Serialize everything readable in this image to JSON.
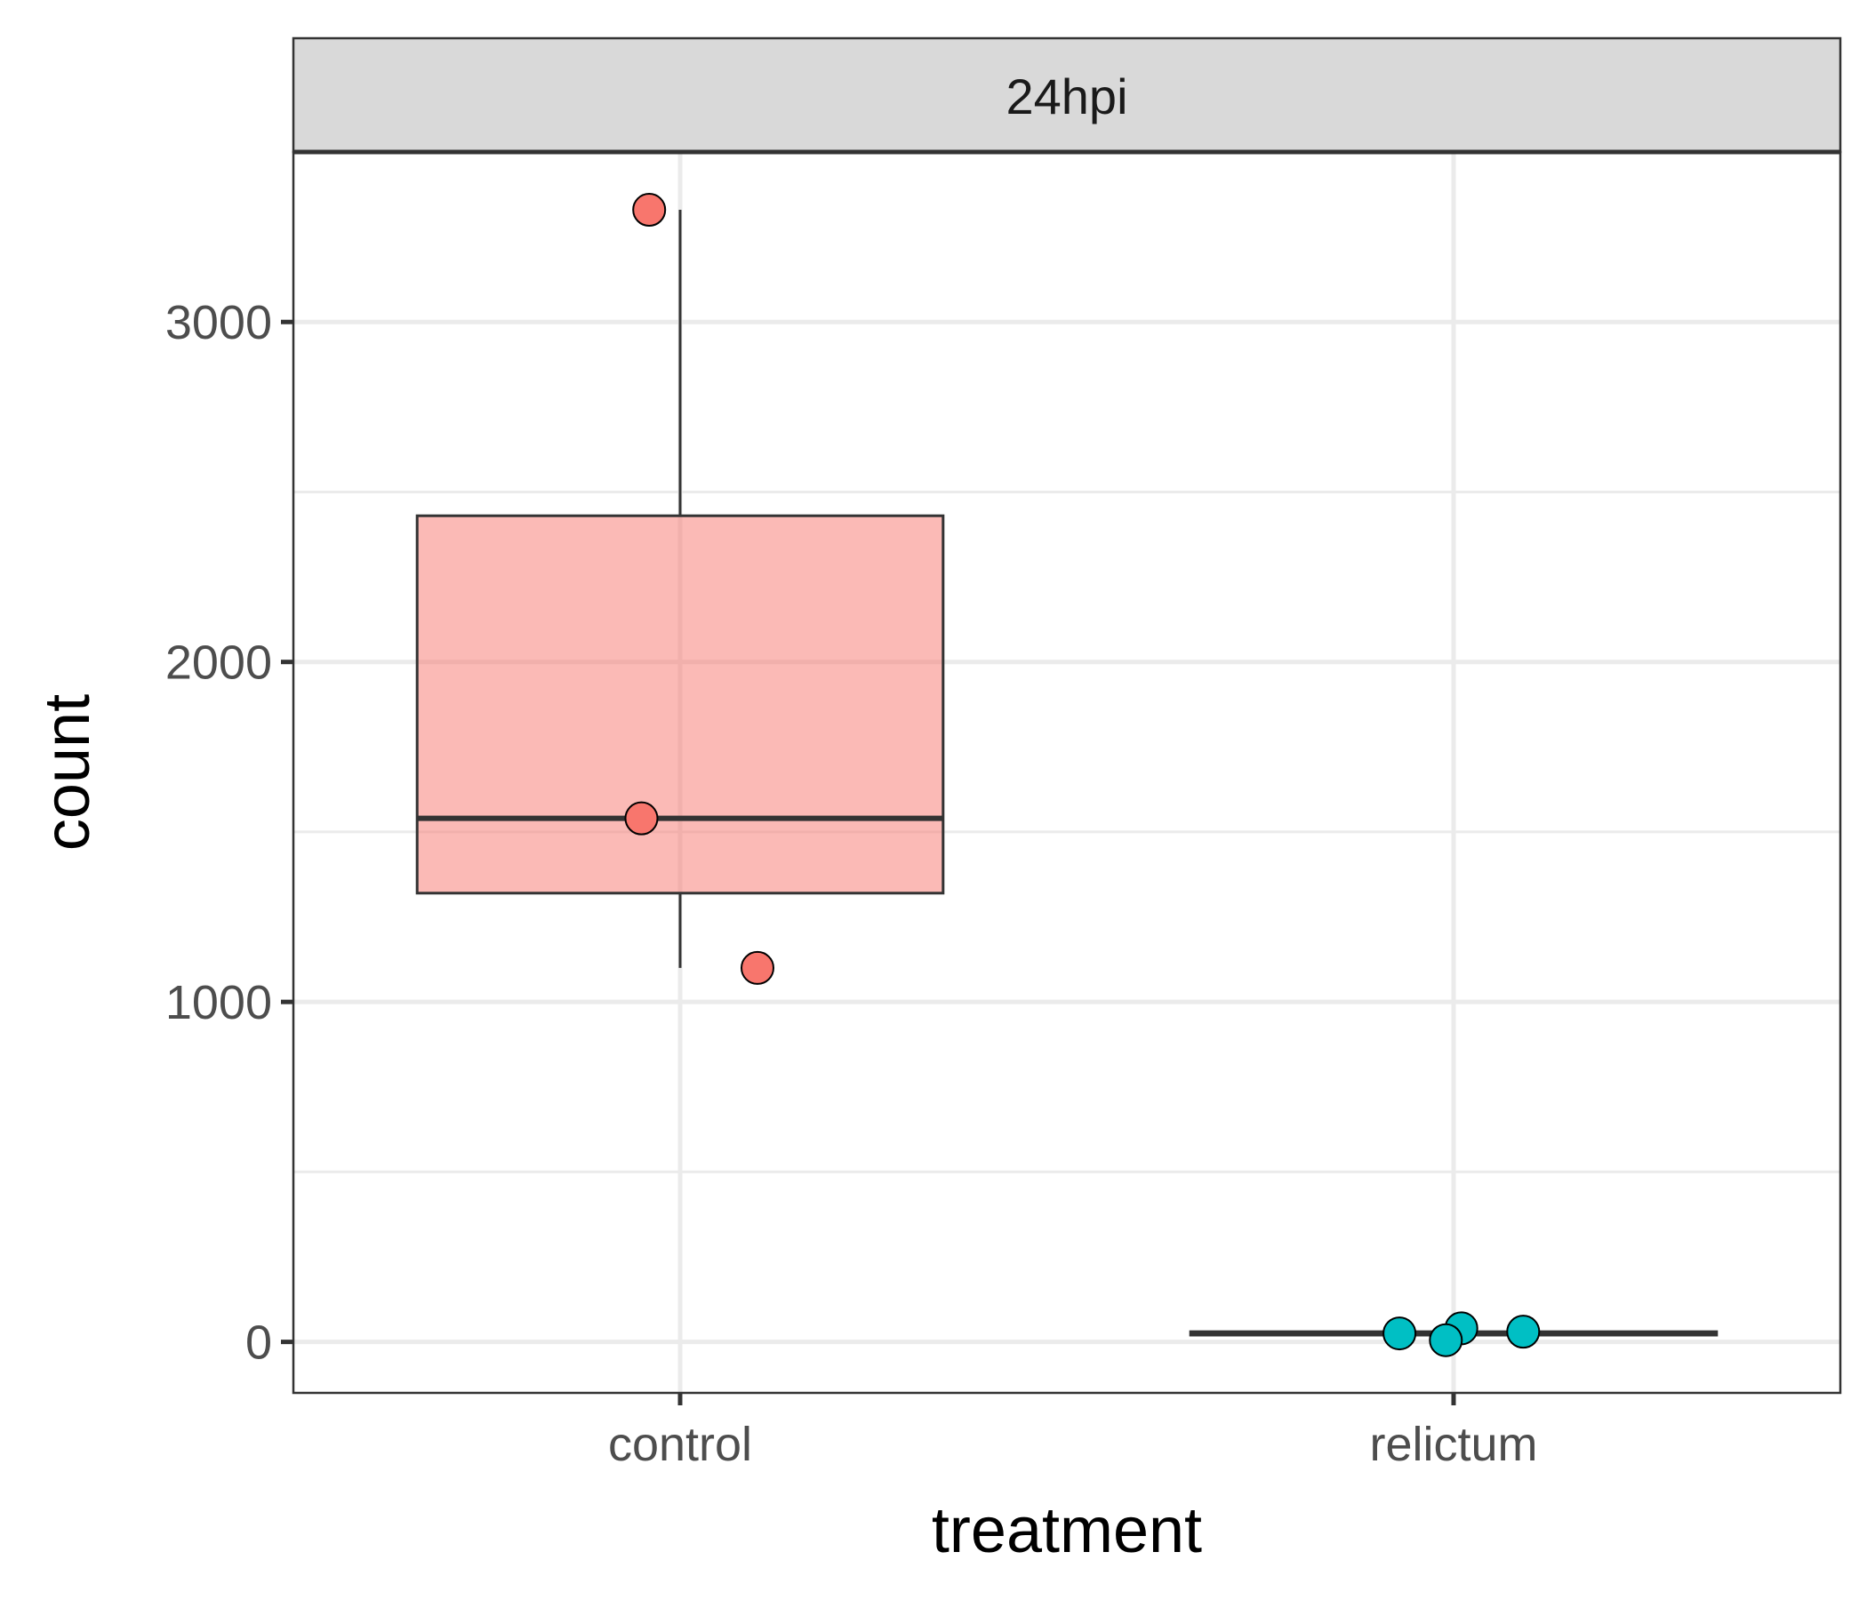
{
  "chart_data": {
    "type": "box",
    "facet": "24hpi",
    "xlabel": "treatment",
    "ylabel": "count",
    "categories": [
      "control",
      "relictum"
    ],
    "y_ticks": [
      0,
      1000,
      2000,
      3000
    ],
    "y_tick_labels": [
      "0",
      "1000",
      "2000",
      "3000"
    ],
    "ylim": [
      -150,
      3500
    ],
    "grid": true,
    "legend": "none",
    "boxes": [
      {
        "category": "control",
        "q1": 1320,
        "median": 1540,
        "q3": 2430,
        "whisker_low": 1100,
        "whisker_high": 3330,
        "color": "#F8766D"
      },
      {
        "category": "relictum",
        "q1": 20,
        "median": 25,
        "q3": 30,
        "whisker_low": 0,
        "whisker_high": 40,
        "color": "#00BFC4"
      }
    ],
    "points": [
      {
        "category": "control",
        "x_offset": -0.04,
        "y": 3330
      },
      {
        "category": "control",
        "x_offset": -0.05,
        "y": 1540
      },
      {
        "category": "control",
        "x_offset": 0.1,
        "y": 1100
      },
      {
        "category": "relictum",
        "x_offset": -0.07,
        "y": 25
      },
      {
        "category": "relictum",
        "x_offset": 0.01,
        "y": 40
      },
      {
        "category": "relictum",
        "x_offset": -0.01,
        "y": 5
      },
      {
        "category": "relictum",
        "x_offset": 0.09,
        "y": 30
      }
    ]
  }
}
